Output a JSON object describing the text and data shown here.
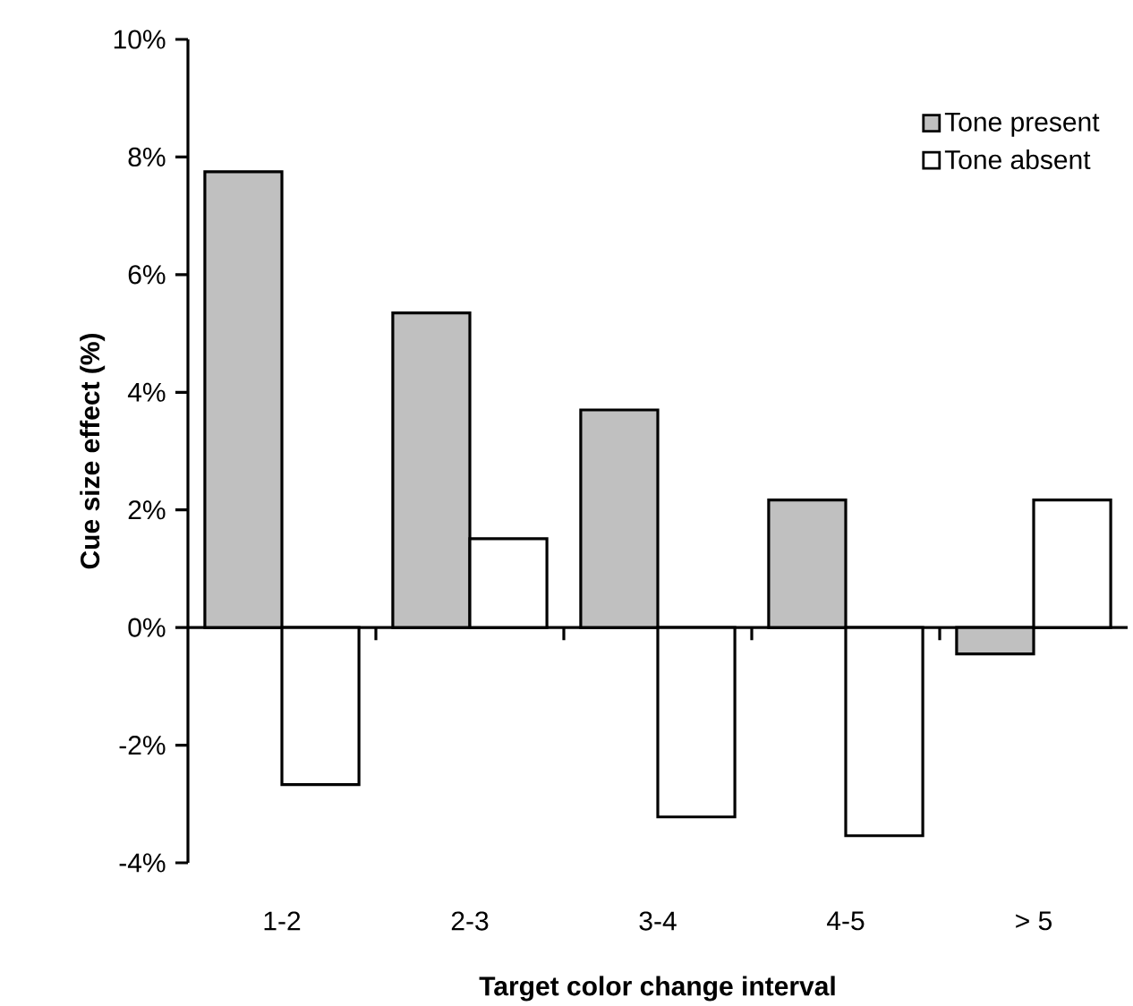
{
  "chart_data": {
    "type": "bar",
    "xlabel": "Target color change interval",
    "ylabel": "Cue size effect (%)",
    "categories": [
      "1-2",
      "2-3",
      "3-4",
      "4-5",
      "> 5"
    ],
    "series": [
      {
        "name": "Tone present",
        "color": "#c0c0c0",
        "values": [
          7.75,
          5.35,
          3.7,
          2.17,
          -0.45
        ]
      },
      {
        "name": "Tone absent",
        "color": "#ffffff",
        "values": [
          -2.67,
          1.51,
          -3.22,
          -3.54,
          2.17
        ]
      }
    ],
    "ylim": [
      -4,
      10
    ],
    "yticks": [
      {
        "value": -4,
        "label": "-4%"
      },
      {
        "value": -2,
        "label": "-2%"
      },
      {
        "value": 0,
        "label": "0%"
      },
      {
        "value": 2,
        "label": "2%"
      },
      {
        "value": 4,
        "label": "4%"
      },
      {
        "value": 6,
        "label": "6%"
      },
      {
        "value": 8,
        "label": "8%"
      },
      {
        "value": 10,
        "label": "10%"
      }
    ],
    "legend": "top right"
  }
}
